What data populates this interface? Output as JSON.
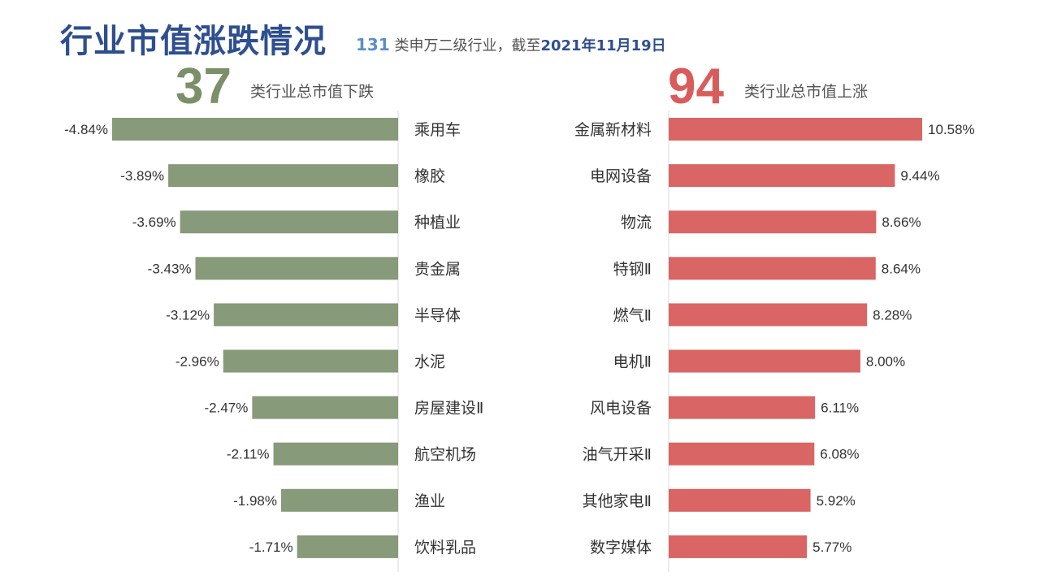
{
  "header": {
    "title": "行业市值涨跌情况",
    "subtitle_count": "131",
    "subtitle_text": "类申万二级行业，截至",
    "subtitle_date": "2021年11月19日"
  },
  "summary": {
    "down_count": "37",
    "down_label": "类行业总市值下跌",
    "up_count": "94",
    "up_label": "类行业总市值上涨"
  },
  "colors": {
    "down_bar": "#879a79",
    "up_bar": "#d96565",
    "title": "#2e4f8f"
  },
  "chart_data": [
    {
      "type": "bar",
      "orientation": "horizontal",
      "direction": "decline",
      "categories": [
        "乘用车",
        "橡胶",
        "种植业",
        "贵金属",
        "半导体",
        "水泥",
        "房屋建设Ⅱ",
        "航空机场",
        "渔业",
        "饮料乳品"
      ],
      "values": [
        -4.84,
        -3.89,
        -3.69,
        -3.43,
        -3.12,
        -2.96,
        -2.47,
        -2.11,
        -1.98,
        -1.71
      ],
      "value_labels": [
        "-4.84%",
        "-3.89%",
        "-3.69%",
        "-3.43%",
        "-3.12%",
        "-2.96%",
        "-2.47%",
        "-2.11%",
        "-1.98%",
        "-1.71%"
      ],
      "unit": "%"
    },
    {
      "type": "bar",
      "orientation": "horizontal",
      "direction": "rise",
      "categories": [
        "金属新材料",
        "电网设备",
        "物流",
        "特钢Ⅱ",
        "燃气Ⅱ",
        "电机Ⅱ",
        "风电设备",
        "油气开采Ⅱ",
        "其他家电Ⅱ",
        "数字媒体"
      ],
      "values": [
        10.58,
        9.44,
        8.66,
        8.64,
        8.28,
        8.0,
        6.11,
        6.08,
        5.92,
        5.77
      ],
      "value_labels": [
        "10.58%",
        "9.44%",
        "8.66%",
        "8.64%",
        "8.28%",
        "8.00%",
        "6.11%",
        "6.08%",
        "5.92%",
        "5.77%"
      ],
      "unit": "%"
    }
  ]
}
